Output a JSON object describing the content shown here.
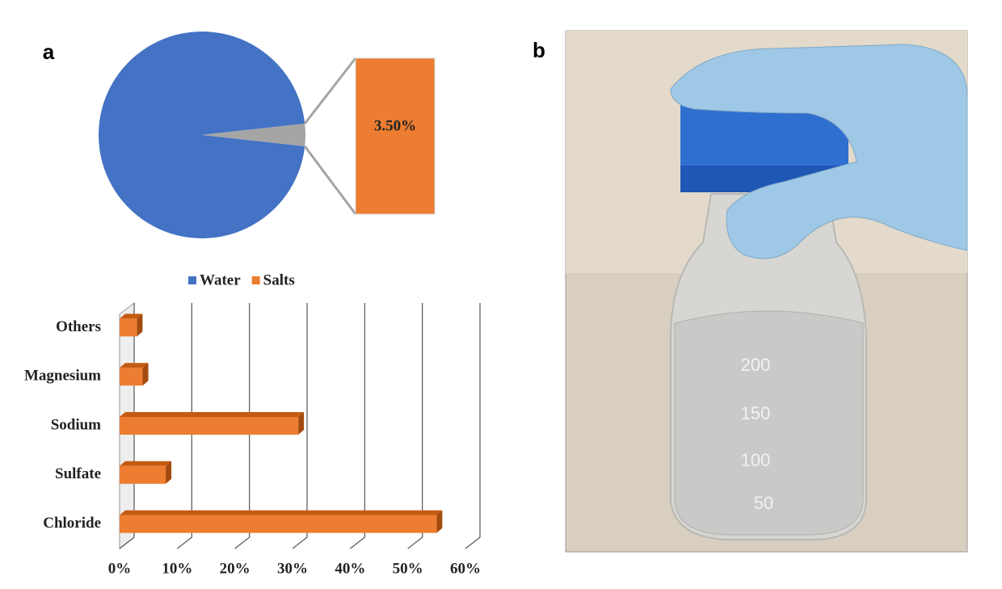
{
  "panel_labels": [
    "a",
    "b"
  ],
  "chart_data": [
    {
      "type": "pie",
      "categories": [
        "Water",
        "Salts"
      ],
      "values": [
        96.5,
        3.5
      ],
      "value_labels": [
        null,
        "3.50%"
      ],
      "colors": [
        "#4472c4",
        "#ed7d31"
      ],
      "legend": "bottom"
    },
    {
      "type": "hbar",
      "categories": [
        "Chloride",
        "Sulfate",
        "Sodium",
        "Magnesium",
        "Others"
      ],
      "values": [
        55,
        8,
        31,
        4,
        3
      ],
      "color": "#ed7d31",
      "xlim": [
        0,
        60
      ],
      "xticks": [
        {
          "value": 0,
          "label": "0%"
        },
        {
          "value": 10,
          "label": "10%"
        },
        {
          "value": 20,
          "label": "20%"
        },
        {
          "value": 30,
          "label": "30%"
        },
        {
          "value": 40,
          "label": "40%"
        },
        {
          "value": 50,
          "label": "50%"
        },
        {
          "value": 60,
          "label": "60%"
        }
      ],
      "grid": true
    }
  ],
  "photo_markings": [
    "200",
    "150",
    "100",
    "50"
  ]
}
